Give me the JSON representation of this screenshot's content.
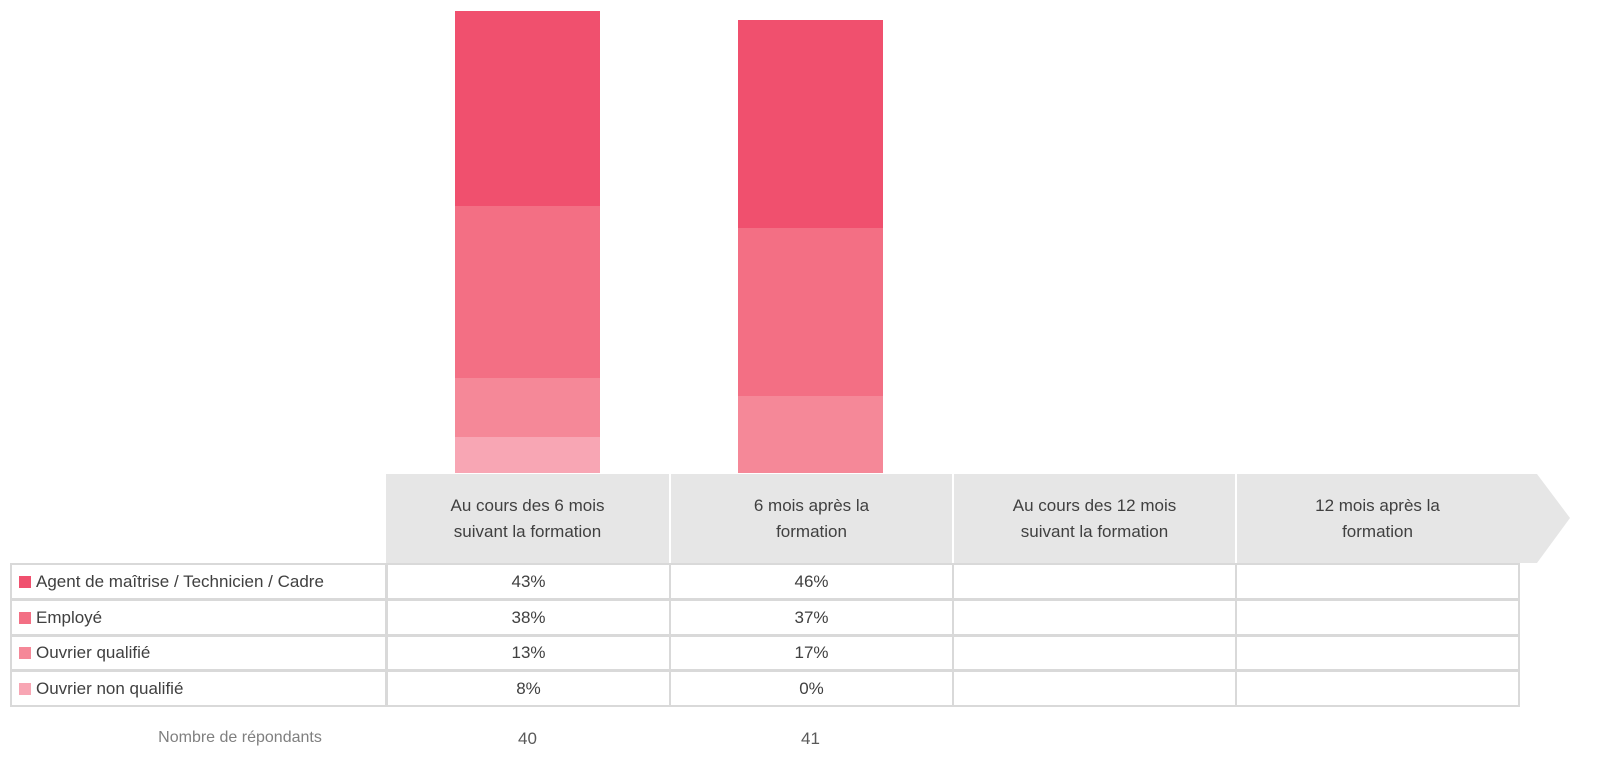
{
  "chart_data": {
    "type": "bar",
    "stacked": true,
    "categories": [
      "Au cours des 6 mois suivant la formation",
      "6 mois après la formation",
      "Au cours des 12 mois suivant la formation",
      "12 mois après la formation"
    ],
    "series": [
      {
        "name": "Agent de maîtrise / Technicien / Cadre",
        "color": "#f0506e",
        "values": [
          43,
          46,
          null,
          null
        ],
        "value_labels": [
          "43%",
          "46%",
          null,
          null
        ]
      },
      {
        "name": "Employé",
        "color": "#f36f84",
        "values": [
          38,
          37,
          null,
          null
        ],
        "value_labels": [
          "38%",
          "37%",
          null,
          null
        ]
      },
      {
        "name": "Ouvrier qualifié",
        "color": "#f58898",
        "values": [
          13,
          17,
          null,
          null
        ],
        "value_labels": [
          "13%",
          "17%",
          null,
          null
        ]
      },
      {
        "name": "Ouvrier non qualifié",
        "color": "#f8a6b4",
        "values": [
          8,
          0,
          null,
          null
        ],
        "value_labels": [
          "8%",
          "0%",
          null,
          null
        ]
      }
    ],
    "ylim": [
      0,
      100
    ],
    "respondents_label": "Nombre de répondants",
    "respondents": [
      40,
      41,
      null,
      null
    ]
  }
}
